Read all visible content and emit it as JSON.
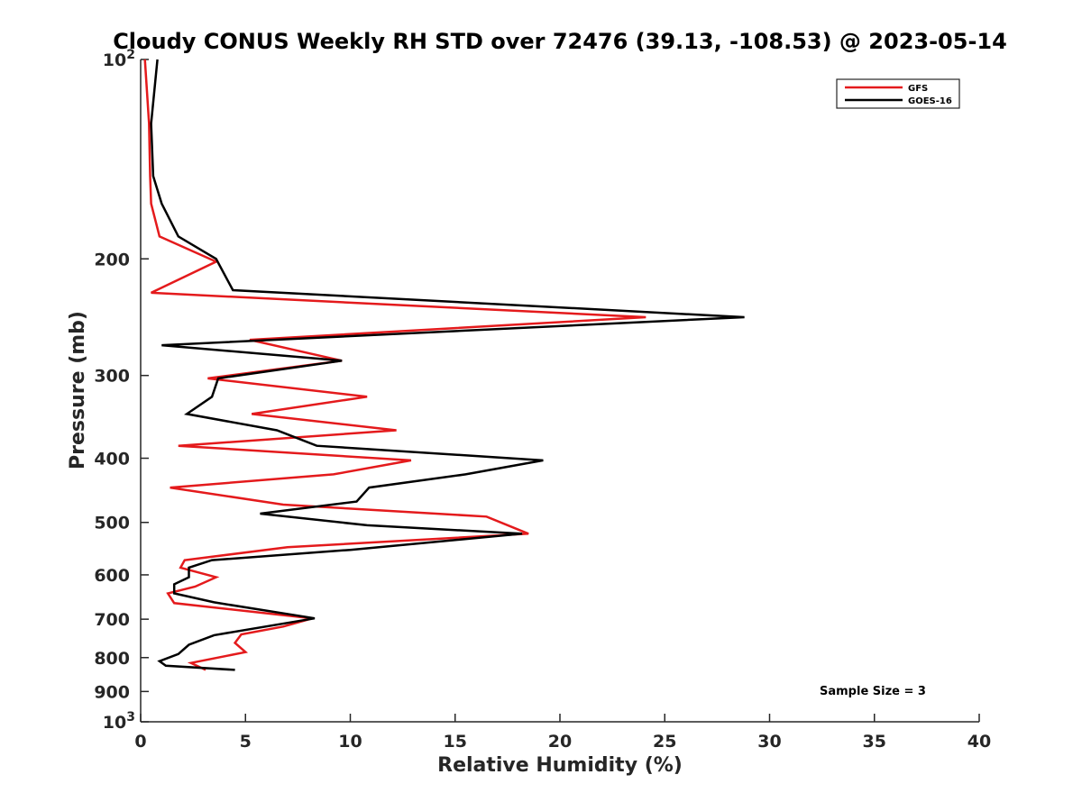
{
  "chart_data": {
    "type": "line",
    "title": "Cloudy CONUS Weekly RH STD over 72476 (39.13, -108.53) @ 2023-05-14",
    "xlabel": "Relative Humidity (%)",
    "ylabel": "Pressure (mb)",
    "xlim": [
      0,
      40
    ],
    "ylim": [
      100,
      1000
    ],
    "yscale": "log",
    "y_reversed": true,
    "grid": false,
    "legend_position": "top-right",
    "x_ticks": [
      0,
      5,
      10,
      15,
      20,
      25,
      30,
      35,
      40
    ],
    "y_ticks": [
      {
        "value": 100,
        "label": "10",
        "sup": "2"
      },
      {
        "value": 200,
        "label": "200"
      },
      {
        "value": 300,
        "label": "300"
      },
      {
        "value": 400,
        "label": "400"
      },
      {
        "value": 500,
        "label": "500"
      },
      {
        "value": 600,
        "label": "600"
      },
      {
        "value": 700,
        "label": "700"
      },
      {
        "value": 800,
        "label": "800"
      },
      {
        "value": 900,
        "label": "900"
      },
      {
        "value": 1000,
        "label": "10",
        "sup": "3"
      }
    ],
    "annotation": "Sample Size = 3",
    "series": [
      {
        "name": "GFS",
        "color": "#e41a1c",
        "points": [
          [
            0.2,
            100
          ],
          [
            0.4,
            125
          ],
          [
            0.45,
            150
          ],
          [
            0.5,
            165
          ],
          [
            0.9,
            185
          ],
          [
            3.6,
            202
          ],
          [
            0.5,
            225
          ],
          [
            24.1,
            245
          ],
          [
            5.2,
            265
          ],
          [
            9.6,
            285
          ],
          [
            3.2,
            303
          ],
          [
            10.8,
            323
          ],
          [
            5.3,
            343
          ],
          [
            12.2,
            363
          ],
          [
            1.8,
            383
          ],
          [
            12.9,
            403
          ],
          [
            9.2,
            423
          ],
          [
            1.4,
            443
          ],
          [
            6.8,
            470
          ],
          [
            16.5,
            490
          ],
          [
            18.5,
            520
          ],
          [
            7.0,
            545
          ],
          [
            2.1,
            570
          ],
          [
            1.9,
            585
          ],
          [
            3.6,
            605
          ],
          [
            2.6,
            625
          ],
          [
            1.3,
            640
          ],
          [
            1.6,
            662
          ],
          [
            8.2,
            698
          ],
          [
            6.8,
            718
          ],
          [
            4.8,
            738
          ],
          [
            4.5,
            760
          ],
          [
            5.0,
            785
          ],
          [
            2.4,
            815
          ],
          [
            3.1,
            835
          ]
        ]
      },
      {
        "name": "GOES-16",
        "color": "#000000",
        "points": [
          [
            0.8,
            100
          ],
          [
            0.5,
            125
          ],
          [
            0.6,
            150
          ],
          [
            1.0,
            165
          ],
          [
            1.8,
            185
          ],
          [
            3.6,
            200
          ],
          [
            4.4,
            223
          ],
          [
            28.8,
            245
          ],
          [
            1.0,
            270
          ],
          [
            9.6,
            285
          ],
          [
            3.7,
            303
          ],
          [
            3.4,
            323
          ],
          [
            2.2,
            343
          ],
          [
            6.5,
            363
          ],
          [
            8.4,
            383
          ],
          [
            19.2,
            403
          ],
          [
            15.5,
            423
          ],
          [
            10.9,
            443
          ],
          [
            10.3,
            465
          ],
          [
            5.7,
            485
          ],
          [
            10.8,
            505
          ],
          [
            18.2,
            520
          ],
          [
            10.0,
            550
          ],
          [
            3.4,
            570
          ],
          [
            2.3,
            585
          ],
          [
            2.3,
            605
          ],
          [
            1.6,
            620
          ],
          [
            1.6,
            640
          ],
          [
            3.5,
            660
          ],
          [
            8.3,
            698
          ],
          [
            3.5,
            740
          ],
          [
            2.3,
            765
          ],
          [
            1.8,
            790
          ],
          [
            0.9,
            810
          ],
          [
            1.2,
            823
          ],
          [
            4.5,
            835
          ]
        ]
      }
    ]
  }
}
